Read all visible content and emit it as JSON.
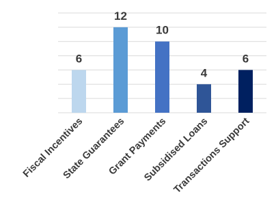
{
  "chart_data": {
    "type": "bar",
    "categories": [
      "Fiscal Incentives",
      "State Guarantees",
      "Grant Payments",
      "Subsidised Loans",
      "Transactions Support"
    ],
    "values": [
      6,
      12,
      10,
      4,
      6
    ],
    "value_labels": [
      "6",
      "12",
      "10",
      "4",
      "6"
    ],
    "colors": [
      "#bdd7ee",
      "#5b9bd5",
      "#4472c4",
      "#2f5597",
      "#002060"
    ],
    "ylim": [
      0,
      14
    ],
    "grid": true,
    "legend": "none"
  }
}
